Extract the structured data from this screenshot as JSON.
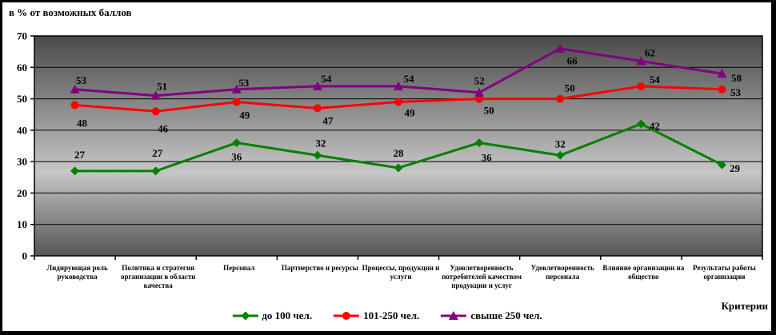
{
  "chart_data": {
    "type": "line",
    "title": "в % от возможных баллов",
    "xlabel": "Критерии",
    "ylabel": "",
    "ylim": [
      0,
      70
    ],
    "ytick_step": 10,
    "grid": true,
    "legend_position": "bottom",
    "plot_background": {
      "type": "gradient",
      "top": "#4a4a4a",
      "mid": "#c6c6c6",
      "bottom": "#565656",
      "mid_pos": 0.62
    },
    "gridline_color": "#000000",
    "categories": [
      "Лидирующая роль руководства",
      "Политика и стратегия организации в области качества",
      "Персонал",
      "Партнерство и ресурсы",
      "Процессы, продукция и услуги",
      "Удовлетворенность потребителей качеством продукции и услуг",
      "Удовлетворенность персонала",
      "Влияние организации на общество",
      "Результаты работы организации"
    ],
    "series": [
      {
        "name": "до 100 чел.",
        "color": "#008000",
        "marker": "diamond",
        "values": [
          27,
          27,
          36,
          32,
          28,
          36,
          32,
          42,
          29
        ]
      },
      {
        "name": "101-250 чел.",
        "color": "#ff0000",
        "marker": "circle",
        "values": [
          48,
          46,
          49,
          47,
          49,
          50,
          50,
          54,
          53
        ]
      },
      {
        "name": "свыше 250 чел.",
        "color": "#800080",
        "marker": "triangle",
        "values": [
          53,
          51,
          53,
          54,
          54,
          52,
          66,
          62,
          58
        ]
      }
    ]
  }
}
